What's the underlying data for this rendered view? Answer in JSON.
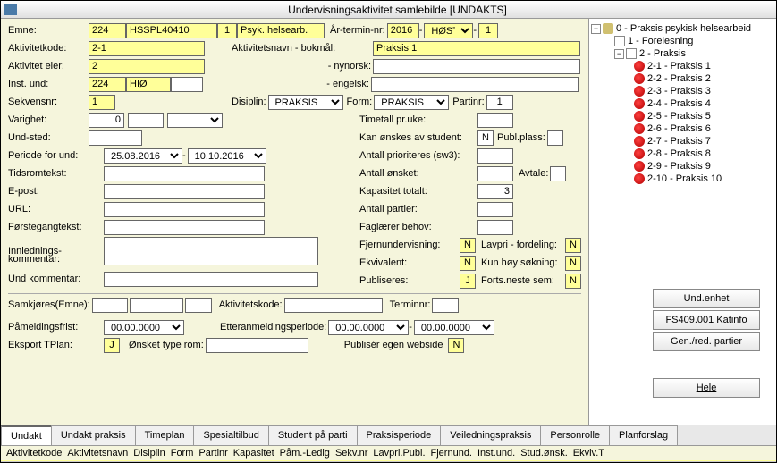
{
  "title": "Undervisningsaktivitet samlebilde   [UNDAKTS]",
  "labels": {
    "emne": "Emne:",
    "artermin": "År-termin-nr:",
    "aktivitetkode": "Aktivitetkode:",
    "aktivitetsnavn_bm": "Aktivitetsnavn  - bokmål:",
    "aktivitet_eier": "Aktivitet eier:",
    "nynorsk": "- nynorsk:",
    "inst_und": "Inst. und:",
    "engelsk": "- engelsk:",
    "sekvensnr": "Sekvensnr:",
    "disiplin": "Disiplin:",
    "form": "Form:",
    "partinr": "Partinr:",
    "varighet": "Varighet:",
    "timetall": "Timetall pr.uke:",
    "undsted": "Und-sted:",
    "kan_onskes": "Kan ønskes av student:",
    "publplass": "Publ.plass:",
    "periode": "Periode for und:",
    "antall_pri": "Antall prioriteres (sw3):",
    "tidsromtekst": "Tidsromtekst:",
    "antall_onsket": "Antall ønsket:",
    "avtale": "Avtale:",
    "epost": "E-post:",
    "kapasitet": "Kapasitet totalt:",
    "url": "URL:",
    "antall_partier": "Antall partier:",
    "forstegang": "Førstegangtekst:",
    "faglaerer": "Faglærer behov:",
    "innlednings": "Innlednings-",
    "kommentar": "kommentar:",
    "fjernund": "Fjernundervisning:",
    "lavpri": "Lavpri - fordeling:",
    "ekvivalent": "Ekvivalent:",
    "kunhoy": "Kun høy søkning:",
    "undkommentar": "Und kommentar:",
    "publiseres": "Publiseres:",
    "fortsneste": "Forts.neste sem:",
    "samkjores": "Samkjøres(Emne):",
    "aktivitetskode2": "Aktivitetskode:",
    "terminnr": "Terminnr:",
    "pameldingsfrist": "Påmeldingsfrist:",
    "etteranm": "Etteranmeldingsperiode:",
    "eksport": "Eksport TPlan:",
    "onsket_rom": "Ønsket type rom:",
    "publ_web": "Publisér egen webside"
  },
  "values": {
    "emne1": "224",
    "emne2": "HSSPL40410",
    "emne3": "1",
    "emne4": "Psyk. helsearb.",
    "ar": "2016",
    "termin": "HØST",
    "terminnr": "1",
    "aktivitetkode": "2-1",
    "aktivitetsnavn": "Praksis 1",
    "aktivitet_eier": "2",
    "inst1": "224",
    "inst2": "HIØ",
    "sekvensnr": "1",
    "disiplin": "PRAKSIS",
    "form": "PRAKSIS",
    "partinr": "1",
    "varighet": "0",
    "kan_onskes": "N",
    "periode_fra": "25.08.2016",
    "periode_til": "10.10.2016",
    "kapasitet": "3",
    "fjernund": "N",
    "lavpri": "N",
    "ekvivalent": "N",
    "kunhoy": "N",
    "publiseres": "J",
    "fortsneste": "N",
    "frist": "00.00.0000",
    "etter_fra": "00.00.0000",
    "etter_til": "00.00.0000",
    "eksport": "J",
    "publ_web": "N"
  },
  "buttons": {
    "und_enhet": "Und.enhet",
    "katinfo": "FS409.001 Katinfo",
    "gen_red": "Gen./red. partier",
    "hele": "Hele"
  },
  "tabs": [
    "Undakt",
    "Undakt praksis",
    "Timeplan",
    "Spesialtilbud",
    "Student på parti",
    "Praksisperiode",
    "Veiledningspraksis",
    "Personrolle",
    "Planforslag"
  ],
  "columns": [
    "Aktivitetkode",
    "Aktivitetsnavn",
    "Disiplin",
    "Form",
    "Partinr",
    "Kapasitet",
    "Påm.-Ledig",
    "Sekv.nr",
    "Lavpri.Publ.",
    "Fjernund.",
    "Inst.und.",
    "Stud.ønsk.",
    "Ekviv.T"
  ],
  "tree": {
    "root": "0 - Praksis psykisk helsearbeid",
    "n1": "1 - Forelesning",
    "n2": "2 - Praksis",
    "children": [
      "2-1 - Praksis 1",
      "2-2 - Praksis 2",
      "2-3 - Praksis 3",
      "2-4 - Praksis 4",
      "2-5 - Praksis 5",
      "2-6 - Praksis 6",
      "2-7 - Praksis 7",
      "2-8 - Praksis 8",
      "2-9 - Praksis 9",
      "2-10 - Praksis 10"
    ]
  },
  "colors": {
    "highlight": "#ffff99",
    "bg": "#f5f5dc"
  }
}
